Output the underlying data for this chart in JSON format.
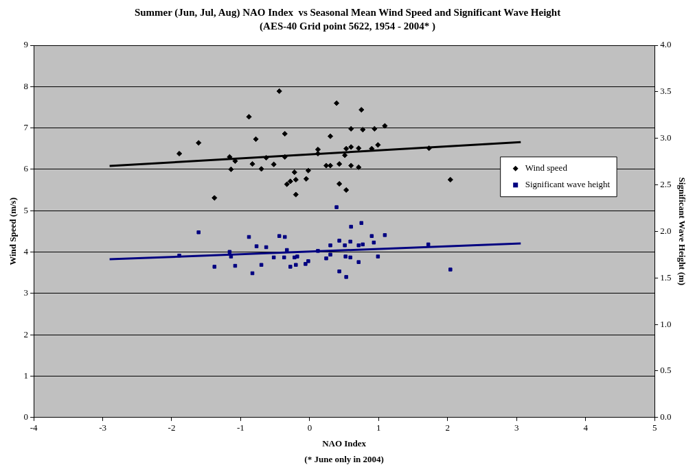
{
  "chart_data": {
    "type": "scatter",
    "title": "Summer (Jun, Jul, Aug) NAO Index  vs Seasonal Mean Wind Speed and Significant Wave Height",
    "subtitle": "(AES-40 Grid point 5622, 1954 - 2004* )",
    "xlabel": "NAO Index",
    "ylabel": "Wind Speed (m/s)",
    "y2label": "Significant Wave Height (m)",
    "annotations": [
      "(* June only in 2004)"
    ],
    "xlim": [
      -4,
      5
    ],
    "xticks": [
      -4,
      -3,
      -2,
      -1,
      0,
      1,
      2,
      3,
      4,
      5
    ],
    "ylim": [
      0,
      9
    ],
    "yticks": [
      0,
      1,
      2,
      3,
      4,
      5,
      6,
      7,
      8,
      9
    ],
    "y2lim": [
      0,
      4
    ],
    "y2ticks": [
      {
        "value": 0,
        "label": "0.0"
      },
      {
        "value": 0.5,
        "label": "0.5"
      },
      {
        "value": 1,
        "label": "1.0"
      },
      {
        "value": 1.5,
        "label": "1.5"
      },
      {
        "value": 2,
        "label": "2.0"
      },
      {
        "value": 2.5,
        "label": "2.5"
      },
      {
        "value": 3,
        "label": "3.0"
      },
      {
        "value": 3.5,
        "label": "3.5"
      },
      {
        "value": 4,
        "label": "4.0"
      }
    ],
    "grid": "y",
    "legend": "right",
    "series": [
      {
        "name": "Wind speed",
        "color": "#000000",
        "marker": "diamond",
        "x": [
          -1.89,
          -1.61,
          -1.38,
          -1.16,
          -1.14,
          -1.08,
          -0.88,
          -0.83,
          -0.78,
          -0.7,
          -0.63,
          -0.52,
          -0.44,
          -0.36,
          -0.36,
          -0.33,
          -0.28,
          -0.22,
          -0.2,
          -0.2,
          -0.05,
          -0.02,
          0.12,
          0.12,
          0.24,
          0.3,
          0.3,
          0.39,
          0.43,
          0.43,
          0.53,
          0.53,
          0.51,
          0.6,
          0.6,
          0.6,
          0.71,
          0.71,
          0.75,
          0.77,
          0.9,
          0.94,
          0.99,
          1.09,
          1.73,
          2.04
        ],
        "values": [
          6.38,
          6.64,
          5.31,
          6.3,
          6.0,
          6.2,
          7.27,
          6.13,
          6.73,
          6.01,
          6.28,
          6.12,
          7.89,
          6.86,
          6.3,
          5.64,
          5.71,
          5.93,
          5.75,
          5.39,
          5.77,
          5.97,
          6.48,
          6.38,
          6.09,
          6.09,
          6.8,
          7.6,
          6.13,
          5.65,
          5.5,
          6.5,
          6.34,
          6.98,
          6.54,
          6.09,
          6.51,
          6.05,
          7.44,
          6.96,
          6.5,
          6.98,
          6.59,
          7.05,
          6.51,
          5.75
        ]
      },
      {
        "name": "Significant wave height",
        "color": "#000080",
        "marker": "square",
        "axis": "y2",
        "x": [
          -1.89,
          -1.61,
          -1.38,
          -1.16,
          -1.14,
          -1.08,
          -0.88,
          -0.83,
          -0.77,
          -0.7,
          -0.63,
          -0.52,
          -0.44,
          -0.36,
          -0.37,
          -0.33,
          -0.28,
          -0.22,
          -0.18,
          -0.2,
          -0.06,
          -0.02,
          0.12,
          0.24,
          0.3,
          0.3,
          0.39,
          0.43,
          0.43,
          0.53,
          0.52,
          0.51,
          0.6,
          0.59,
          0.59,
          0.71,
          0.71,
          0.75,
          0.77,
          0.9,
          0.93,
          0.99,
          1.09,
          1.72,
          2.04
        ],
        "values": [
          1.74,
          1.99,
          1.62,
          1.78,
          1.73,
          1.63,
          1.94,
          1.55,
          1.84,
          1.64,
          1.83,
          1.72,
          1.95,
          1.94,
          1.72,
          1.8,
          1.62,
          1.72,
          1.73,
          1.64,
          1.65,
          1.68,
          1.79,
          1.71,
          1.85,
          1.75,
          2.26,
          1.9,
          1.57,
          1.51,
          1.73,
          1.85,
          2.05,
          1.89,
          1.72,
          1.85,
          1.67,
          2.09,
          1.86,
          1.95,
          1.88,
          1.73,
          1.96,
          1.86,
          1.59
        ]
      },
      {
        "type": "line",
        "color": "#000000",
        "marker": "none",
        "x": [
          -2.9,
          3.06
        ],
        "values": [
          6.08,
          6.66
        ]
      },
      {
        "type": "line",
        "color": "#000080",
        "marker": "none",
        "axis": "y2",
        "x": [
          -2.9,
          3.06
        ],
        "values": [
          1.7,
          1.87
        ]
      }
    ]
  }
}
